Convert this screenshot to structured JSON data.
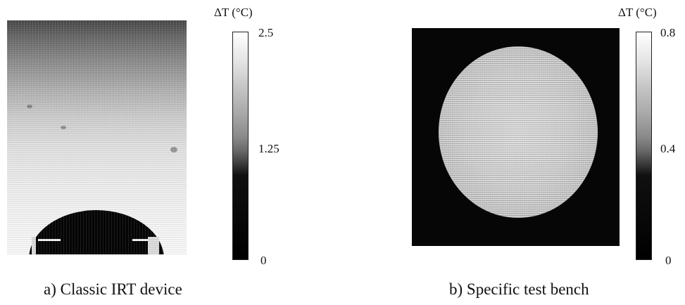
{
  "panel_a": {
    "caption": "a) Classic IRT device",
    "colorbar": {
      "unit_label": "ΔT (°C)",
      "tick_max": "2.5",
      "tick_mid": "1.25",
      "tick_min": "0"
    }
  },
  "panel_b": {
    "caption": "b) Specific test bench",
    "colorbar": {
      "unit_label": "ΔT (°C)",
      "tick_max": "0.8",
      "tick_mid": "0.4",
      "tick_min": "0"
    }
  },
  "colors": {
    "background": "#ffffff",
    "hot": "#ffffff",
    "cold": "#000000"
  }
}
